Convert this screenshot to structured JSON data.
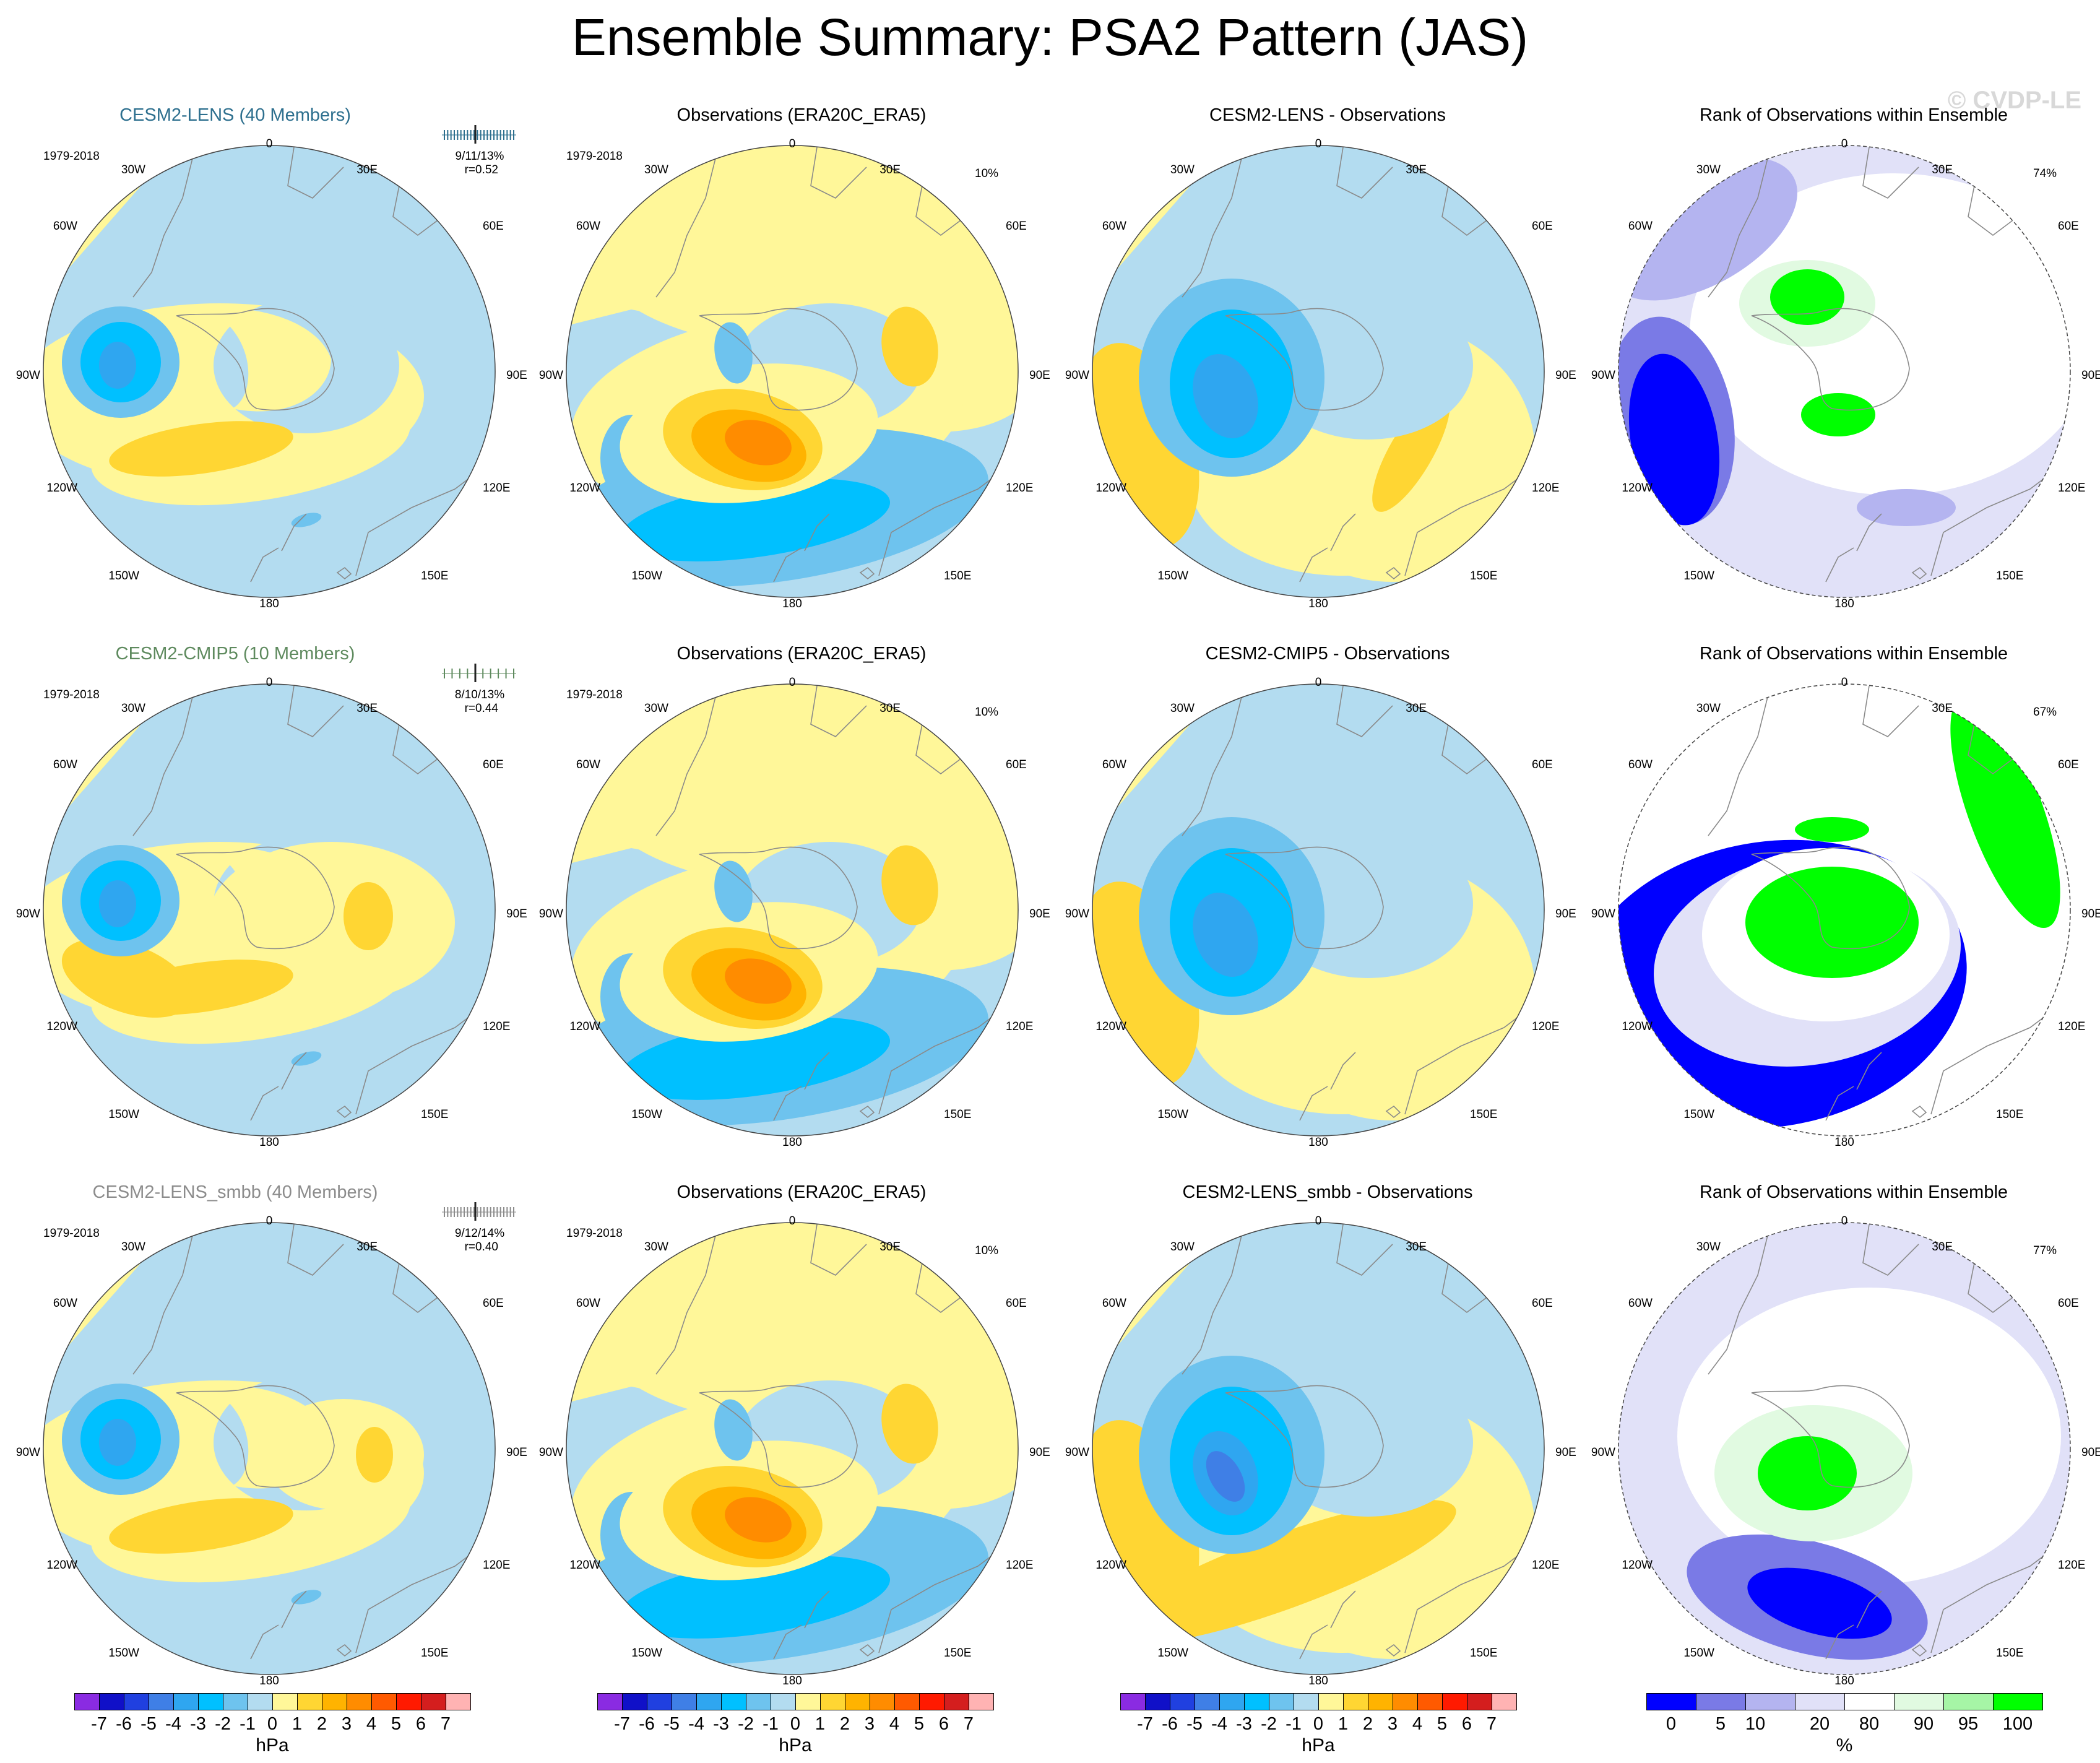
{
  "title": "Ensemble Summary: PSA2 Pattern (JAS)",
  "watermark": "© CVDP-LE",
  "map_labels": {
    "lon_0": "0",
    "lon_30E": "30E",
    "lon_60E": "60E",
    "lon_90E": "90E",
    "lon_120E": "120E",
    "lon_150E": "150E",
    "lon_180": "180",
    "lon_150W": "150W",
    "lon_120W": "120W",
    "lon_90W": "90W",
    "lon_60W": "60W",
    "lon_30W": "30W"
  },
  "rows": [
    {
      "model": {
        "title": "CESM2-LENS (40 Members)",
        "years": "1979-2018",
        "stats": "9/11/13%",
        "corr": "r=0.52",
        "color": "#2d6f8e"
      },
      "obs": {
        "title": "Observations (ERA20C_ERA5)",
        "years": "1979-2018",
        "pct": "10%"
      },
      "diff": {
        "title": "CESM2-LENS - Observations"
      },
      "rank": {
        "title": "Rank of Observations within Ensemble",
        "pct": "74%"
      }
    },
    {
      "model": {
        "title": "CESM2-CMIP5 (10 Members)",
        "years": "1979-2018",
        "stats": "8/10/13%",
        "corr": "r=0.44",
        "color": "#5e8a5e"
      },
      "obs": {
        "title": "Observations (ERA20C_ERA5)",
        "years": "1979-2018",
        "pct": "10%"
      },
      "diff": {
        "title": "CESM2-CMIP5 - Observations"
      },
      "rank": {
        "title": "Rank of Observations within Ensemble",
        "pct": "67%"
      }
    },
    {
      "model": {
        "title": "CESM2-LENS_smbb (40 Members)",
        "years": "1979-2018",
        "stats": "9/12/14%",
        "corr": "r=0.40",
        "color": "#8c8c8c"
      },
      "obs": {
        "title": "Observations (ERA20C_ERA5)",
        "years": "1979-2018",
        "pct": "10%"
      },
      "diff": {
        "title": "CESM2-LENS_smbb - Observations"
      },
      "rank": {
        "title": "Rank of Observations within Ensemble",
        "pct": "77%"
      }
    }
  ],
  "colorbar_hpa": {
    "unit": "hPa",
    "ticks": [
      "-7",
      "-6",
      "-5",
      "-4",
      "-3",
      "-2",
      "-1",
      "0",
      "1",
      "2",
      "3",
      "4",
      "5",
      "6",
      "7"
    ],
    "colors": [
      "#8a2be2",
      "#1010c8",
      "#2040e0",
      "#3f7fe6",
      "#2fa6f0",
      "#00c0ff",
      "#6ec3ee",
      "#b3dcf0",
      "#fff799",
      "#ffd633",
      "#ffb300",
      "#ff8c00",
      "#ff5a00",
      "#ff1a00",
      "#d41e1e",
      "#ffb3b3"
    ]
  },
  "colorbar_pct": {
    "unit": "%",
    "ticks": [
      "0",
      "5",
      "10",
      "20",
      "80",
      "90",
      "95",
      "100"
    ],
    "colors": [
      "#0000ff",
      "#7a7ae6",
      "#b4b4f0",
      "#e1e1f8",
      "#ffffff",
      "#e1fae1",
      "#a6f5a6",
      "#00ff00"
    ]
  }
}
